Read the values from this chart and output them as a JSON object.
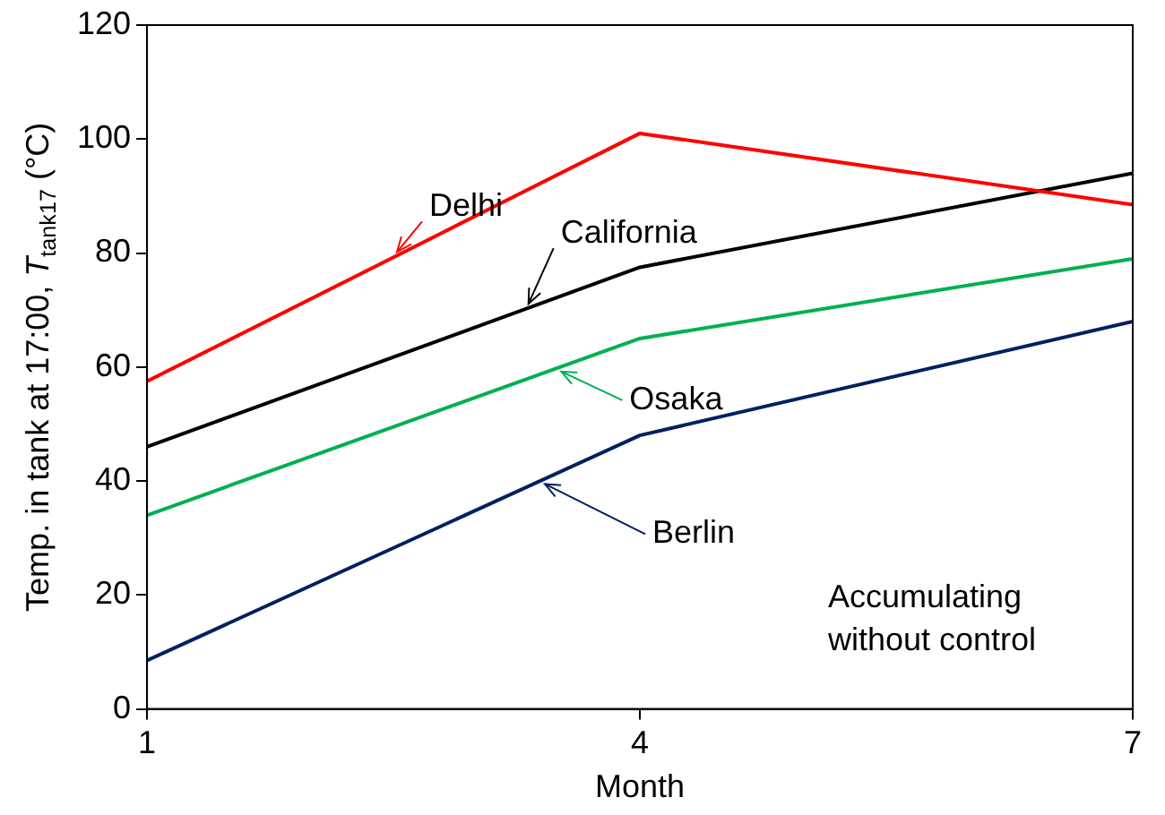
{
  "chart_data": {
    "type": "line",
    "xlabel": "Month",
    "ylabel": "Temp. in tank at 17:00, T$_{tank17}$ (°C)",
    "x": [
      1,
      4,
      7
    ],
    "xlim": [
      1,
      7
    ],
    "xticks": [
      1,
      4,
      7
    ],
    "ylim": [
      0,
      120
    ],
    "yticks": [
      0,
      20,
      40,
      60,
      80,
      100,
      120
    ],
    "grid": false,
    "marker": "none",
    "line_style": "solid",
    "series": [
      {
        "name": "Delhi",
        "color": "#ff0000",
        "values": [
          57.5,
          101,
          88.5
        ]
      },
      {
        "name": "California",
        "color": "#000000",
        "values": [
          46,
          77.5,
          94
        ]
      },
      {
        "name": "Osaka",
        "color": "#00b050",
        "values": [
          34,
          65,
          79
        ]
      },
      {
        "name": "Berlin",
        "color": "#002060",
        "values": [
          8.5,
          48,
          68
        ]
      }
    ],
    "annotations": [
      "Accumulating without control"
    ]
  }
}
